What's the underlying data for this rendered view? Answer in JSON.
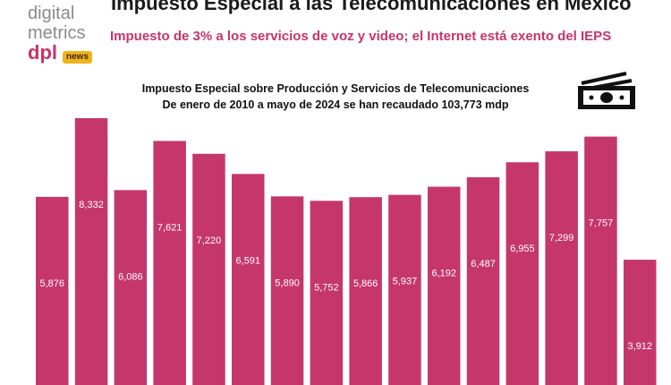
{
  "brand": {
    "line1": "digital",
    "line2": "metrics",
    "dpl": "dpl",
    "news": "news"
  },
  "header": {
    "title": "Impuesto Especial a las Telecomunicaciones en México",
    "subtitle": "Impuesto de 3% a los servicios de voz y video; el Internet está exento del IEPS"
  },
  "icons": {
    "money": "money-bills-icon"
  },
  "colors": {
    "bar": "#c5376a",
    "accent": "#c7346a",
    "label": "#ffffff"
  },
  "chart_data": {
    "type": "bar",
    "title": "Impuesto Especial sobre Producción y Servicios de Telecomunicaciones",
    "subtitle": "De enero de 2010 a mayo de 2024 se han recaudado 103,773 mdp",
    "categories": [
      "",
      "",
      "",
      "",
      "",
      "",
      "",
      "",
      "",
      "",
      "",
      "",
      "",
      "",
      "",
      ""
    ],
    "values": [
      5876,
      8332,
      6086,
      7621,
      7220,
      6591,
      5890,
      5752,
      5866,
      5937,
      6192,
      6487,
      6955,
      7299,
      7757,
      3912
    ],
    "value_labels": [
      "5,876",
      "8,332",
      "6,086",
      "7,621",
      "7,220",
      "6,591",
      "5,890",
      "5,752",
      "5,866",
      "5,937",
      "6,192",
      "6,487",
      "6,955",
      "7,299",
      "7,757",
      "3,912"
    ],
    "xlabel": "",
    "ylabel": "",
    "grid": false,
    "legend": "none"
  }
}
